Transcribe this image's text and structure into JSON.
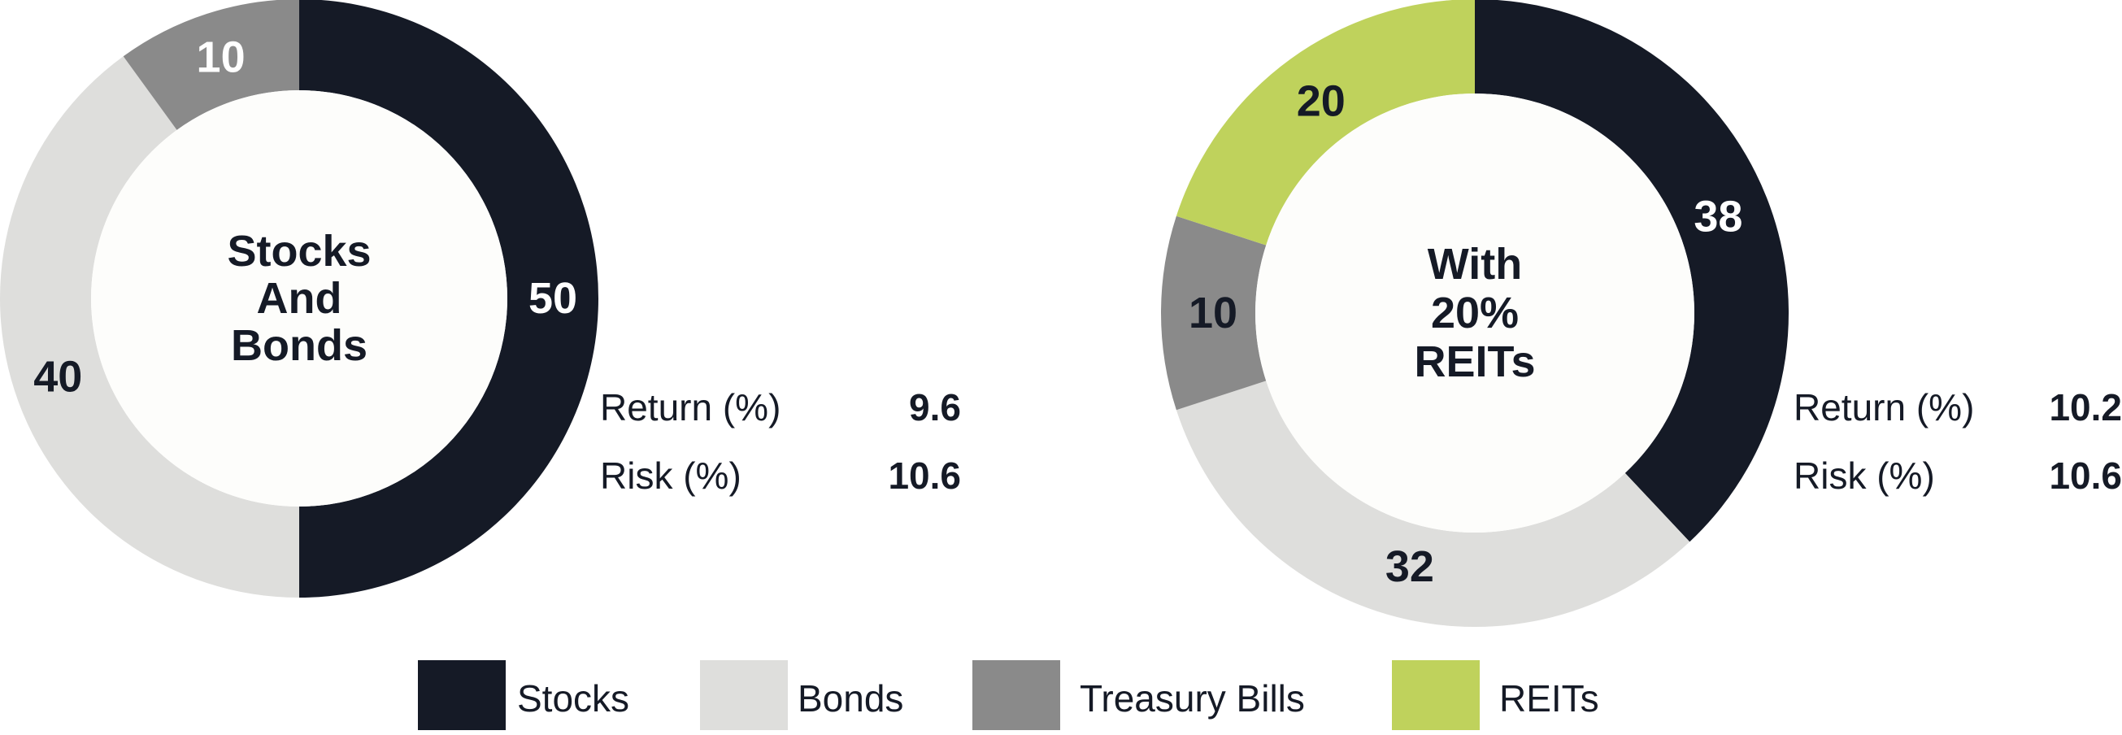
{
  "colors": {
    "stocks": "#151a26",
    "bonds": "#dededc",
    "treasury_bills": "#8a8a8a",
    "reits": "#bfd25c",
    "center_fill": "#fdfdfb",
    "label_dark": "#151a26",
    "label_light": "#ffffff"
  },
  "chart_data": [
    {
      "type": "pie",
      "title": "Stocks And Bonds",
      "title_lines": [
        "Stocks",
        "And",
        "Bonds"
      ],
      "slices": [
        {
          "name": "Stocks",
          "value": 50
        },
        {
          "name": "Bonds",
          "value": 40
        },
        {
          "name": "Treasury Bills",
          "value": 10
        }
      ],
      "stats": {
        "return_label": "Return (%)",
        "return_value": "9.6",
        "risk_label": "Risk (%)",
        "risk_value": "10.6"
      }
    },
    {
      "type": "pie",
      "title": "With 20% REITs",
      "title_lines": [
        "With",
        "20%",
        "REITs"
      ],
      "slices": [
        {
          "name": "Stocks",
          "value": 38
        },
        {
          "name": "Bonds",
          "value": 32
        },
        {
          "name": "Treasury Bills",
          "value": 10
        },
        {
          "name": "REITs",
          "value": 20
        }
      ],
      "stats": {
        "return_label": "Return (%)",
        "return_value": "10.2",
        "risk_label": "Risk (%)",
        "risk_value": "10.6"
      }
    }
  ],
  "legend": {
    "placement": "bottom",
    "items": [
      {
        "label": "Stocks",
        "color_key": "stocks"
      },
      {
        "label": "Bonds",
        "color_key": "bonds"
      },
      {
        "label": "Treasury Bills",
        "color_key": "treasury_bills"
      },
      {
        "label": "REITs",
        "color_key": "reits"
      }
    ]
  }
}
